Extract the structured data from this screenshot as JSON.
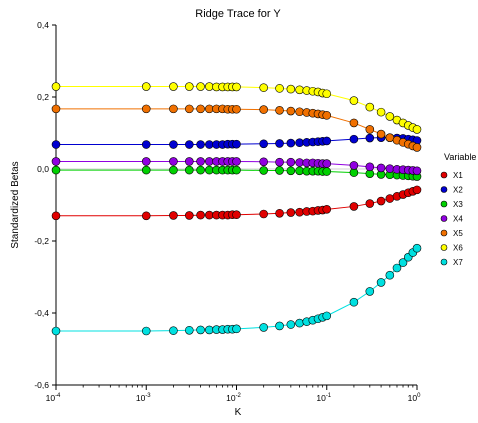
{
  "chart_data": {
    "type": "line",
    "title": "Ridge Trace for Y",
    "xlabel": "K",
    "ylabel": "Standardized Betas",
    "x_scale": "log",
    "xlim": [
      0.0001,
      1
    ],
    "ylim": [
      -0.6,
      0.4
    ],
    "x_ticks": [
      {
        "base": "10",
        "exp": "-4"
      },
      {
        "base": "10",
        "exp": "-3"
      },
      {
        "base": "10",
        "exp": "-2"
      },
      {
        "base": "10",
        "exp": "-1"
      },
      {
        "base": "10",
        "exp": "0"
      }
    ],
    "y_ticks": [
      "-0,6",
      "-0,4",
      "-0,2",
      "0,0",
      "0,2",
      "0,4"
    ],
    "y_tick_values": [
      -0.6,
      -0.4,
      -0.2,
      0.0,
      0.2,
      0.4
    ],
    "grid": false,
    "legend": {
      "title": "Variable",
      "position": "right"
    },
    "x": [
      0.0001,
      0.001,
      0.002,
      0.003,
      0.004,
      0.005,
      0.006,
      0.007,
      0.008,
      0.009,
      0.01,
      0.02,
      0.03,
      0.04,
      0.05,
      0.06,
      0.07,
      0.08,
      0.09,
      0.1,
      0.2,
      0.3,
      0.4,
      0.5,
      0.6,
      0.7,
      0.8,
      0.9,
      1.0
    ],
    "series": [
      {
        "name": "X1",
        "color": "#e00000",
        "values": [
          -0.13,
          -0.13,
          -0.129,
          -0.129,
          -0.128,
          -0.128,
          -0.128,
          -0.128,
          -0.128,
          -0.127,
          -0.127,
          -0.125,
          -0.123,
          -0.121,
          -0.12,
          -0.118,
          -0.117,
          -0.115,
          -0.114,
          -0.112,
          -0.104,
          -0.096,
          -0.089,
          -0.082,
          -0.076,
          -0.071,
          -0.066,
          -0.062,
          -0.058
        ]
      },
      {
        "name": "X2",
        "color": "#0000d0",
        "values": [
          0.068,
          0.068,
          0.068,
          0.068,
          0.068,
          0.068,
          0.068,
          0.068,
          0.069,
          0.069,
          0.069,
          0.07,
          0.071,
          0.072,
          0.073,
          0.074,
          0.075,
          0.076,
          0.077,
          0.078,
          0.083,
          0.086,
          0.087,
          0.087,
          0.086,
          0.085,
          0.083,
          0.081,
          0.079
        ]
      },
      {
        "name": "X3",
        "color": "#00d000",
        "values": [
          -0.003,
          -0.003,
          -0.003,
          -0.003,
          -0.003,
          -0.003,
          -0.003,
          -0.003,
          -0.003,
          -0.003,
          -0.003,
          -0.004,
          -0.004,
          -0.005,
          -0.005,
          -0.006,
          -0.006,
          -0.006,
          -0.007,
          -0.007,
          -0.01,
          -0.013,
          -0.015,
          -0.016,
          -0.017,
          -0.018,
          -0.019,
          -0.02,
          -0.021
        ]
      },
      {
        "name": "X4",
        "color": "#9000e0",
        "values": [
          0.021,
          0.021,
          0.021,
          0.021,
          0.021,
          0.021,
          0.021,
          0.021,
          0.021,
          0.021,
          0.021,
          0.02,
          0.019,
          0.019,
          0.018,
          0.017,
          0.017,
          0.016,
          0.015,
          0.015,
          0.01,
          0.006,
          0.003,
          0.001,
          -0.001,
          -0.002,
          -0.003,
          -0.004,
          -0.005
        ]
      },
      {
        "name": "X5",
        "color": "#f07000",
        "values": [
          0.167,
          0.167,
          0.167,
          0.167,
          0.167,
          0.167,
          0.167,
          0.167,
          0.166,
          0.166,
          0.166,
          0.165,
          0.163,
          0.161,
          0.159,
          0.157,
          0.155,
          0.153,
          0.151,
          0.149,
          0.128,
          0.11,
          0.097,
          0.087,
          0.08,
          0.074,
          0.069,
          0.064,
          0.06
        ]
      },
      {
        "name": "X6",
        "color": "#ffff00",
        "values": [
          0.229,
          0.229,
          0.229,
          0.229,
          0.229,
          0.229,
          0.228,
          0.228,
          0.228,
          0.228,
          0.228,
          0.226,
          0.224,
          0.222,
          0.22,
          0.218,
          0.216,
          0.214,
          0.211,
          0.209,
          0.19,
          0.172,
          0.158,
          0.146,
          0.136,
          0.128,
          0.121,
          0.115,
          0.11
        ]
      },
      {
        "name": "X7",
        "color": "#00e0e0",
        "values": [
          -0.45,
          -0.45,
          -0.449,
          -0.448,
          -0.447,
          -0.447,
          -0.446,
          -0.446,
          -0.445,
          -0.445,
          -0.444,
          -0.44,
          -0.436,
          -0.432,
          -0.428,
          -0.424,
          -0.42,
          -0.416,
          -0.412,
          -0.408,
          -0.37,
          -0.34,
          -0.315,
          -0.295,
          -0.275,
          -0.26,
          -0.245,
          -0.232,
          -0.22
        ]
      }
    ]
  }
}
